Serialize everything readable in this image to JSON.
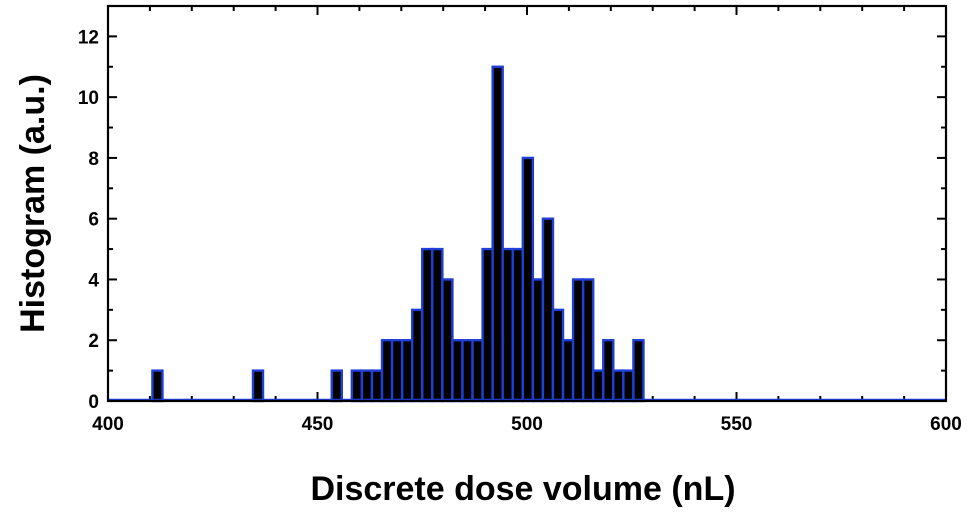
{
  "chart_data": {
    "type": "bar",
    "title": "",
    "xlabel": "Discrete dose volume (nL)",
    "ylabel": "Histogram (a.u.)",
    "xlim": [
      400,
      600
    ],
    "ylim": [
      0,
      13
    ],
    "xticks": [
      400,
      450,
      500,
      550,
      600
    ],
    "yticks": [
      0,
      2,
      4,
      6,
      8,
      10,
      12
    ],
    "bin_width": 2.4,
    "grid": false,
    "bar_color": "#000000",
    "bar_edge_color": "#1f3fd6",
    "baseline_color": "#1f3fd6",
    "bins": [
      {
        "x": 411.8,
        "count": 1
      },
      {
        "x": 435.8,
        "count": 1
      },
      {
        "x": 454.6,
        "count": 1
      },
      {
        "x": 459.4,
        "count": 1
      },
      {
        "x": 461.8,
        "count": 1
      },
      {
        "x": 464.2,
        "count": 1
      },
      {
        "x": 466.6,
        "count": 2
      },
      {
        "x": 469.0,
        "count": 2
      },
      {
        "x": 471.4,
        "count": 2
      },
      {
        "x": 473.8,
        "count": 3
      },
      {
        "x": 476.2,
        "count": 5
      },
      {
        "x": 478.6,
        "count": 5
      },
      {
        "x": 481.0,
        "count": 4
      },
      {
        "x": 483.4,
        "count": 2
      },
      {
        "x": 485.8,
        "count": 2
      },
      {
        "x": 488.2,
        "count": 2
      },
      {
        "x": 490.6,
        "count": 5
      },
      {
        "x": 493.0,
        "count": 11
      },
      {
        "x": 495.4,
        "count": 5
      },
      {
        "x": 497.8,
        "count": 5
      },
      {
        "x": 500.2,
        "count": 8
      },
      {
        "x": 502.6,
        "count": 4
      },
      {
        "x": 505.0,
        "count": 6
      },
      {
        "x": 507.4,
        "count": 3
      },
      {
        "x": 509.8,
        "count": 2
      },
      {
        "x": 512.2,
        "count": 4
      },
      {
        "x": 514.6,
        "count": 4
      },
      {
        "x": 517.0,
        "count": 1
      },
      {
        "x": 519.4,
        "count": 2
      },
      {
        "x": 521.8,
        "count": 1
      },
      {
        "x": 524.2,
        "count": 1
      },
      {
        "x": 526.6,
        "count": 2
      }
    ]
  }
}
